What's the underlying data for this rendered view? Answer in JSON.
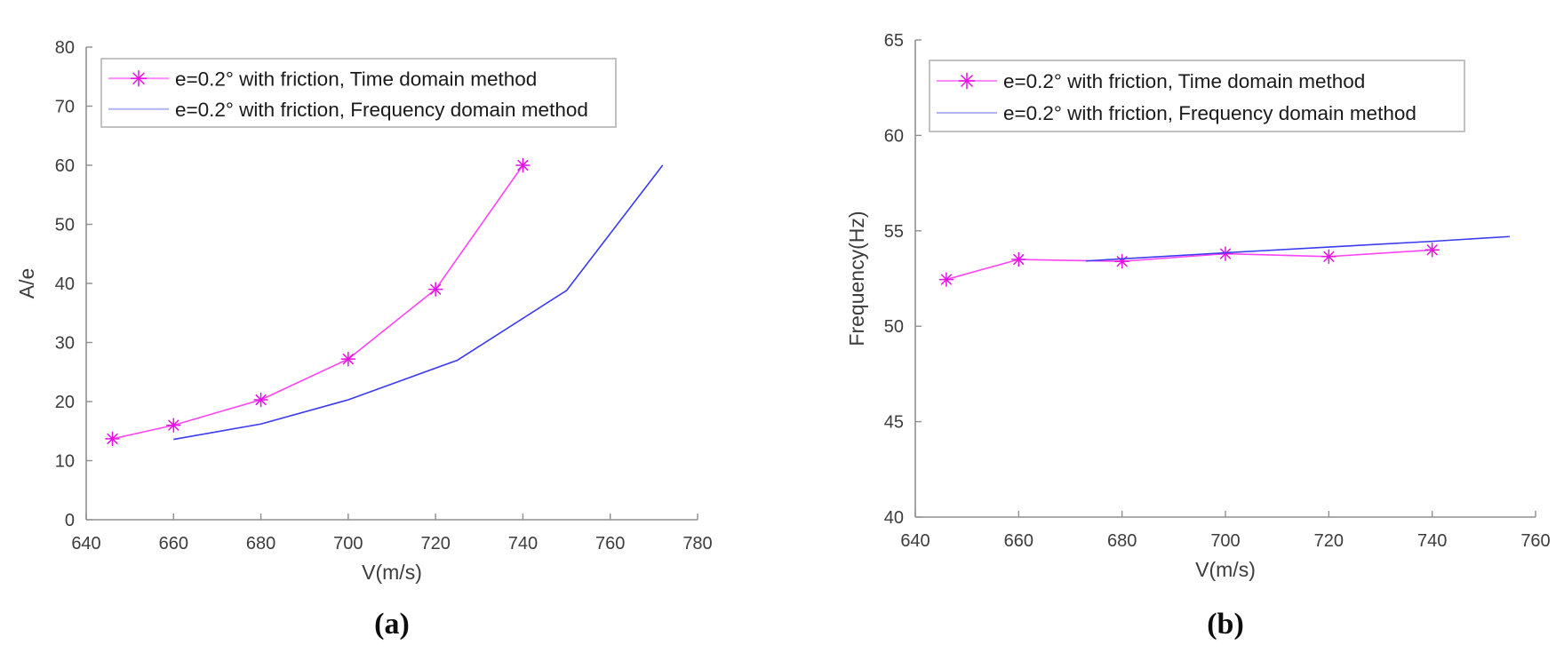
{
  "figure": {
    "background": "#ffffff",
    "text_color": "#3c3c3c",
    "axis_color": "#8f8f8f",
    "legend_border_color": "#b3b3b3"
  },
  "chart_data": [
    {
      "id": "a",
      "type": "line",
      "caption": "(a)",
      "xlabel": "V(m/s)",
      "ylabel": "A/e",
      "xlim": [
        640,
        780
      ],
      "ylim": [
        0,
        80
      ],
      "xticks": [
        640,
        660,
        680,
        700,
        720,
        740,
        760,
        780
      ],
      "yticks": [
        0,
        10,
        20,
        30,
        40,
        50,
        60,
        70,
        80
      ],
      "grid": false,
      "legend_position": "upper-left-inside",
      "series": [
        {
          "name": "e=0.2° with friction, Time domain method",
          "color": "#ff44f4",
          "legend_color": "#ff8cff",
          "marker": "star",
          "marker_color": "#e312e3",
          "x": [
            646,
            660,
            680,
            700,
            720,
            740
          ],
          "y": [
            13.7,
            16.0,
            20.3,
            27.2,
            39.0,
            60.0
          ]
        },
        {
          "name": "e=0.2° with friction, Frequency domain method",
          "color": "#3a3af0",
          "legend_color": "#b2b2f8",
          "marker": "none",
          "marker_color": "#3a3af0",
          "x": [
            660,
            680,
            700,
            725,
            750,
            772
          ],
          "y": [
            13.6,
            16.2,
            20.3,
            27.0,
            38.8,
            60.0
          ]
        }
      ]
    },
    {
      "id": "b",
      "type": "line",
      "caption": "(b)",
      "xlabel": "V(m/s)",
      "ylabel": "Frequency(Hz)",
      "xlim": [
        640,
        760
      ],
      "ylim": [
        40,
        65
      ],
      "xticks": [
        640,
        660,
        680,
        700,
        720,
        740,
        760
      ],
      "yticks": [
        40,
        45,
        50,
        55,
        60,
        65
      ],
      "grid": false,
      "legend_position": "upper-left-inside",
      "series": [
        {
          "name": "e=0.2° with friction, Time domain method",
          "color": "#ff44f4",
          "legend_color": "#ff8cff",
          "marker": "star",
          "marker_color": "#e312e3",
          "x": [
            646,
            660,
            680,
            700,
            720,
            740
          ],
          "y": [
            52.45,
            53.5,
            53.4,
            53.8,
            53.65,
            54.0
          ]
        },
        {
          "name": "e=0.2° with friction, Frequency domain method",
          "color": "#3a3af0",
          "legend_color": "#b2b2f8",
          "marker": "none",
          "marker_color": "#3a3af0",
          "x": [
            673,
            700,
            720,
            740,
            755
          ],
          "y": [
            53.42,
            53.85,
            54.15,
            54.45,
            54.7
          ]
        }
      ]
    }
  ]
}
